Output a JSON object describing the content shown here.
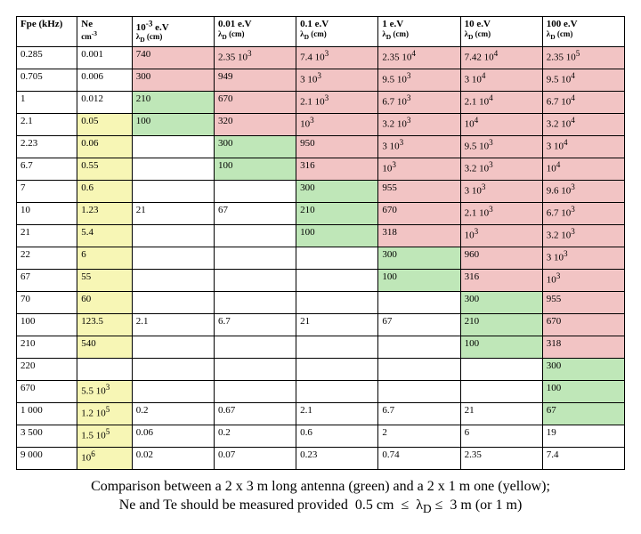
{
  "cols": [
    {
      "l1": "Fpe (kHz)",
      "l2": ""
    },
    {
      "l1": "Ne",
      "l2": "cm<sup>-3</sup>"
    },
    {
      "l1": "10<sup>-3</sup> e.V",
      "l2": "λ<sub>D</sub> (cm)"
    },
    {
      "l1": "0.01 e.V",
      "l2": "λ<sub>D</sub> (cm)"
    },
    {
      "l1": "0.1 e.V",
      "l2": "λ<sub>D</sub> (cm)"
    },
    {
      "l1": "1 e.V",
      "l2": "λ<sub>D</sub> (cm)"
    },
    {
      "l1": "10 e.V",
      "l2": "λ<sub>D</sub> (cm)"
    },
    {
      "l1": "100 e.V",
      "l2": "λ<sub>D</sub> (cm)"
    }
  ],
  "rows": [
    [
      [
        "0.285",
        ""
      ],
      [
        "0.001",
        ""
      ],
      [
        "740",
        "p"
      ],
      [
        "2.35 10<sup>3</sup>",
        "p"
      ],
      [
        "7.4 10<sup>3</sup>",
        "p"
      ],
      [
        "2.35 10<sup>4</sup>",
        "p"
      ],
      [
        "7.42 10<sup>4</sup>",
        "p"
      ],
      [
        "2.35 10<sup>5</sup>",
        "p"
      ]
    ],
    [
      [
        "0.705",
        ""
      ],
      [
        "0.006",
        ""
      ],
      [
        "300",
        "p"
      ],
      [
        "949",
        "p"
      ],
      [
        "3 10<sup>3</sup>",
        "p"
      ],
      [
        "9.5 10<sup>3</sup>",
        "p"
      ],
      [
        "3 10<sup>4</sup>",
        "p"
      ],
      [
        "9.5 10<sup>4</sup>",
        "p"
      ]
    ],
    [
      [
        "1",
        ""
      ],
      [
        "0.012",
        ""
      ],
      [
        "210",
        "g"
      ],
      [
        "670",
        "p"
      ],
      [
        "2.1 10<sup>3</sup>",
        "p"
      ],
      [
        "6.7 10<sup>3</sup>",
        "p"
      ],
      [
        "2.1 10<sup>4</sup>",
        "p"
      ],
      [
        "6.7 10<sup>4</sup>",
        "p"
      ]
    ],
    [
      [
        "2.1",
        ""
      ],
      [
        "0.05",
        "y"
      ],
      [
        "100",
        "g"
      ],
      [
        "320",
        "p"
      ],
      [
        "10<sup>3</sup>",
        "p"
      ],
      [
        "3.2 10<sup>3</sup>",
        "p"
      ],
      [
        "10<sup>4</sup>",
        "p"
      ],
      [
        "3.2 10<sup>4</sup>",
        "p"
      ]
    ],
    [
      [
        "2.23",
        ""
      ],
      [
        "0.06",
        "y"
      ],
      [
        "",
        ""
      ],
      [
        "300",
        "g"
      ],
      [
        "950",
        "p"
      ],
      [
        "3 10<sup>3</sup>",
        "p"
      ],
      [
        "9.5 10<sup>3</sup>",
        "p"
      ],
      [
        "3 10<sup>4</sup>",
        "p"
      ]
    ],
    [
      [
        "6.7",
        ""
      ],
      [
        "0.55",
        "y"
      ],
      [
        "",
        ""
      ],
      [
        "100",
        "g"
      ],
      [
        "316",
        "p"
      ],
      [
        "10<sup>3</sup>",
        "p"
      ],
      [
        "3.2 10<sup>3</sup>",
        "p"
      ],
      [
        "10<sup>4</sup>",
        "p"
      ]
    ],
    [
      [
        "7",
        ""
      ],
      [
        "0.6",
        "y"
      ],
      [
        "",
        ""
      ],
      [
        "",
        ""
      ],
      [
        "300",
        "g"
      ],
      [
        "955",
        "p"
      ],
      [
        "3 10<sup>3</sup>",
        "p"
      ],
      [
        "9.6 10<sup>3</sup>",
        "p"
      ]
    ],
    [
      [
        "10",
        ""
      ],
      [
        "1.23",
        "y"
      ],
      [
        "21",
        ""
      ],
      [
        "67",
        ""
      ],
      [
        "210",
        "g"
      ],
      [
        "670",
        "p"
      ],
      [
        "2.1 10<sup>3</sup>",
        "p"
      ],
      [
        "6.7 10<sup>3</sup>",
        "p"
      ]
    ],
    [
      [
        "21",
        ""
      ],
      [
        "5.4",
        "y"
      ],
      [
        "",
        ""
      ],
      [
        "",
        ""
      ],
      [
        "100",
        "g"
      ],
      [
        "318",
        "p"
      ],
      [
        "10<sup>3</sup>",
        "p"
      ],
      [
        "3.2 10<sup>3</sup>",
        "p"
      ]
    ],
    [
      [
        "22",
        ""
      ],
      [
        "6",
        "y"
      ],
      [
        "",
        ""
      ],
      [
        "",
        ""
      ],
      [
        "",
        ""
      ],
      [
        "300",
        "g"
      ],
      [
        "960",
        "p"
      ],
      [
        "3 10<sup>3</sup>",
        "p"
      ]
    ],
    [
      [
        "67",
        ""
      ],
      [
        "55",
        "y"
      ],
      [
        "",
        ""
      ],
      [
        "",
        ""
      ],
      [
        "",
        ""
      ],
      [
        "100",
        "g"
      ],
      [
        "316",
        "p"
      ],
      [
        "10<sup>3</sup>",
        "p"
      ]
    ],
    [
      [
        "70",
        ""
      ],
      [
        "60",
        "y"
      ],
      [
        "",
        ""
      ],
      [
        "",
        ""
      ],
      [
        "",
        ""
      ],
      [
        "",
        ""
      ],
      [
        "300",
        "g"
      ],
      [
        "955",
        "p"
      ]
    ],
    [
      [
        "100",
        ""
      ],
      [
        "123.5",
        "y"
      ],
      [
        "2.1",
        ""
      ],
      [
        "6.7",
        ""
      ],
      [
        "21",
        ""
      ],
      [
        "67",
        ""
      ],
      [
        "210",
        "g"
      ],
      [
        "670",
        "p"
      ]
    ],
    [
      [
        "210",
        ""
      ],
      [
        "540",
        "y"
      ],
      [
        "",
        ""
      ],
      [
        "",
        ""
      ],
      [
        "",
        ""
      ],
      [
        "",
        ""
      ],
      [
        "100",
        "g"
      ],
      [
        "318",
        "p"
      ]
    ],
    [
      [
        "220",
        ""
      ],
      [
        "",
        ""
      ],
      [
        "",
        ""
      ],
      [
        "",
        ""
      ],
      [
        "",
        ""
      ],
      [
        "",
        ""
      ],
      [
        "",
        ""
      ],
      [
        "300",
        "g"
      ]
    ],
    [
      [
        "670",
        ""
      ],
      [
        "5.5 10<sup>3</sup>",
        "y"
      ],
      [
        "",
        ""
      ],
      [
        "",
        ""
      ],
      [
        "",
        ""
      ],
      [
        "",
        ""
      ],
      [
        "",
        ""
      ],
      [
        "100",
        "g"
      ]
    ],
    [
      [
        "1 000",
        ""
      ],
      [
        "1.2 10<sup>5</sup>",
        "y"
      ],
      [
        "0.2",
        ""
      ],
      [
        "0.67",
        ""
      ],
      [
        "2.1",
        ""
      ],
      [
        "6.7",
        ""
      ],
      [
        "21",
        ""
      ],
      [
        "67",
        "g"
      ]
    ],
    [
      [
        "3 500",
        ""
      ],
      [
        "1.5 10<sup>5</sup>",
        "y"
      ],
      [
        "0.06",
        ""
      ],
      [
        "0.2",
        ""
      ],
      [
        "0.6",
        ""
      ],
      [
        "2",
        ""
      ],
      [
        "6",
        ""
      ],
      [
        "19",
        ""
      ]
    ],
    [
      [
        "9 000",
        ""
      ],
      [
        "10<sup>6</sup>",
        "y"
      ],
      [
        "0.02",
        ""
      ],
      [
        "0.07",
        ""
      ],
      [
        "0.23",
        ""
      ],
      [
        "0.74",
        ""
      ],
      [
        "2.35",
        ""
      ],
      [
        "7.4",
        ""
      ]
    ]
  ],
  "caption_l1": "Comparison between a 2 x 3 m long antenna (green) and a 2 x 1 m one (yellow);",
  "caption_l2": "Ne and Te should be measured provided &nbsp;0.5 cm &nbsp;≤ &nbsp;λ<sub>D</sub> ≤ &nbsp;3 m (or 1 m)"
}
